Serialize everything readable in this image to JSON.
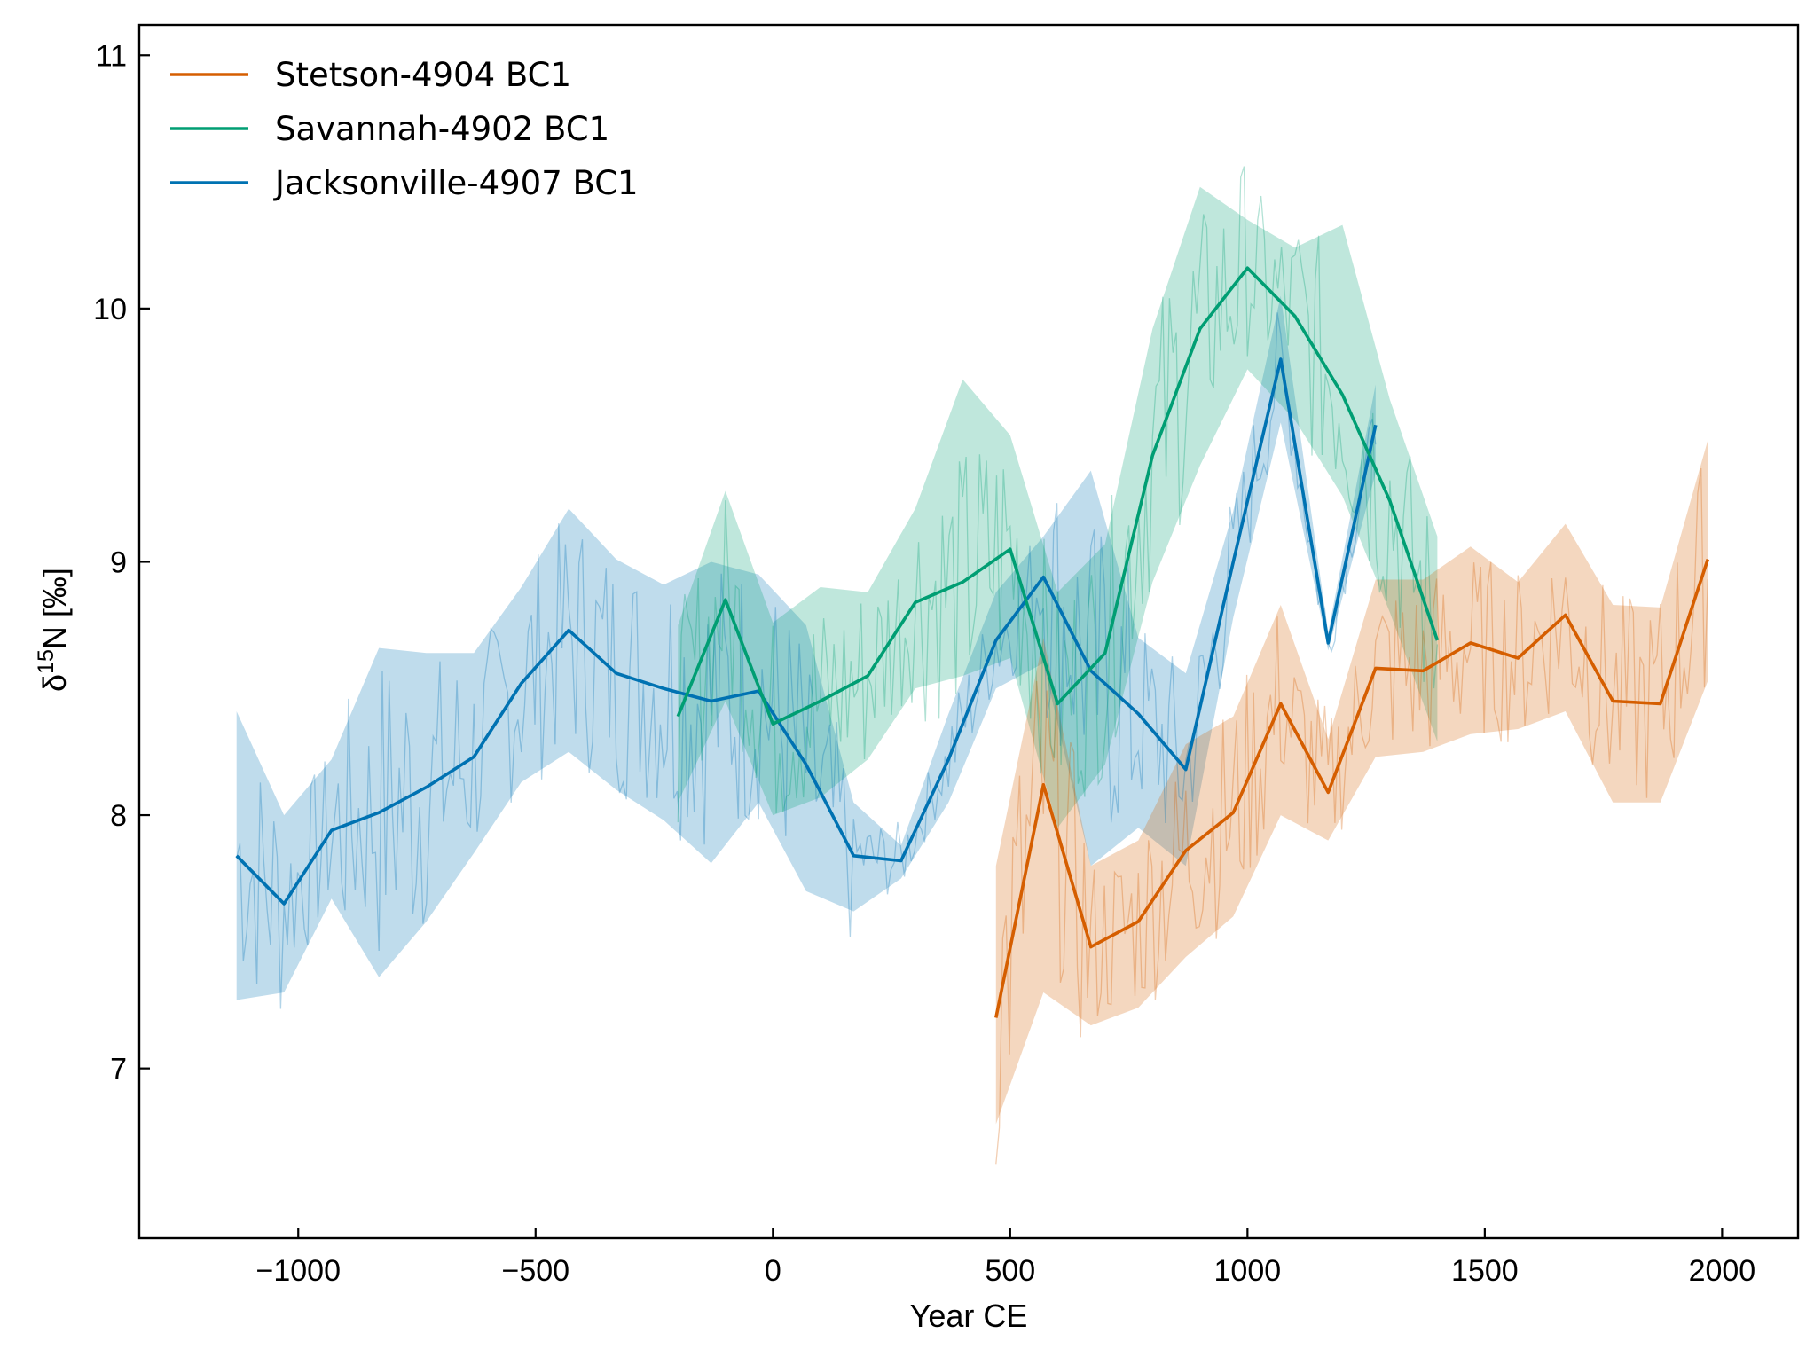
{
  "chart_data": {
    "type": "line",
    "title": "",
    "xlabel": "Year CE",
    "ylabel_parts": {
      "main": "δ",
      "sup": "15",
      "rest": "N [‰]"
    },
    "xlim": [
      -1335,
      2160
    ],
    "ylim": [
      6.33,
      11.12
    ],
    "xticks": [
      -1000,
      -500,
      0,
      500,
      1000,
      1500,
      2000
    ],
    "xtick_labels": [
      "−1000",
      "−500",
      "0",
      "500",
      "1000",
      "1500",
      "2000"
    ],
    "yticks": [
      7,
      8,
      9,
      10,
      11
    ],
    "ytick_labels": [
      "7",
      "8",
      "9",
      "10",
      "11"
    ],
    "grid": false,
    "legend_position": "top-left",
    "series": [
      {
        "name": "Stetson-4904 BC1",
        "color": "#d55e00",
        "x": [
          470,
          570,
          670,
          770,
          870,
          970,
          1070,
          1170,
          1270,
          1370,
          1470,
          1570,
          1670,
          1770,
          1870,
          1970
        ],
        "y": [
          7.2,
          8.12,
          7.48,
          7.58,
          7.86,
          8.01,
          8.44,
          8.09,
          8.58,
          8.57,
          8.68,
          8.62,
          8.79,
          8.45,
          8.44,
          9.01
        ],
        "lower": [
          6.78,
          7.3,
          7.17,
          7.24,
          7.44,
          7.6,
          8.0,
          7.9,
          8.23,
          8.25,
          8.32,
          8.34,
          8.41,
          8.05,
          8.05,
          8.53
        ],
        "upper": [
          7.8,
          8.7,
          7.8,
          7.9,
          8.28,
          8.39,
          8.83,
          8.3,
          8.93,
          8.93,
          9.06,
          8.92,
          9.15,
          8.83,
          8.82,
          9.48
        ]
      },
      {
        "name": "Savannah-4902 BC1",
        "color": "#009e73",
        "x": [
          -200,
          -100,
          0,
          100,
          200,
          300,
          400,
          500,
          600,
          700,
          800,
          900,
          1000,
          1100,
          1200,
          1300,
          1400
        ],
        "y": [
          8.39,
          8.85,
          8.36,
          8.45,
          8.55,
          8.84,
          8.92,
          9.05,
          8.44,
          8.64,
          9.42,
          9.92,
          10.16,
          9.97,
          9.66,
          9.24,
          8.69
        ],
        "lower": [
          8.05,
          8.45,
          8.0,
          8.07,
          8.22,
          8.5,
          8.55,
          8.62,
          7.95,
          8.2,
          8.92,
          9.38,
          9.76,
          9.56,
          9.26,
          8.8,
          8.29
        ],
        "upper": [
          8.75,
          9.28,
          8.76,
          8.9,
          8.88,
          9.21,
          9.72,
          9.5,
          8.88,
          9.07,
          9.92,
          10.48,
          10.35,
          10.24,
          10.33,
          9.64,
          9.1
        ]
      },
      {
        "name": "Jacksonville-4907 BC1",
        "color": "#0072b2",
        "x": [
          -1130,
          -1030,
          -930,
          -830,
          -730,
          -630,
          -530,
          -430,
          -330,
          -230,
          -130,
          -30,
          70,
          170,
          270,
          370,
          470,
          570,
          670,
          770,
          870,
          970,
          1070,
          1170,
          1270
        ],
        "y": [
          7.84,
          7.65,
          7.94,
          8.01,
          8.11,
          8.23,
          8.52,
          8.73,
          8.56,
          8.5,
          8.45,
          8.49,
          8.2,
          7.84,
          7.82,
          8.22,
          8.69,
          8.94,
          8.57,
          8.4,
          8.18,
          9.0,
          9.8,
          8.68,
          9.54
        ],
        "lower": [
          7.27,
          7.3,
          7.67,
          7.36,
          7.58,
          7.85,
          8.13,
          8.25,
          8.1,
          7.98,
          7.81,
          8.05,
          7.7,
          7.62,
          7.75,
          8.05,
          8.5,
          8.6,
          7.8,
          7.95,
          7.8,
          8.78,
          9.55,
          8.65,
          9.35
        ],
        "upper": [
          8.41,
          8.0,
          8.22,
          8.66,
          8.64,
          8.64,
          8.9,
          9.21,
          9.01,
          8.91,
          9.0,
          8.95,
          8.75,
          8.05,
          7.88,
          8.4,
          8.88,
          9.1,
          9.36,
          8.7,
          8.56,
          9.2,
          10.05,
          8.72,
          9.7
        ]
      }
    ]
  }
}
